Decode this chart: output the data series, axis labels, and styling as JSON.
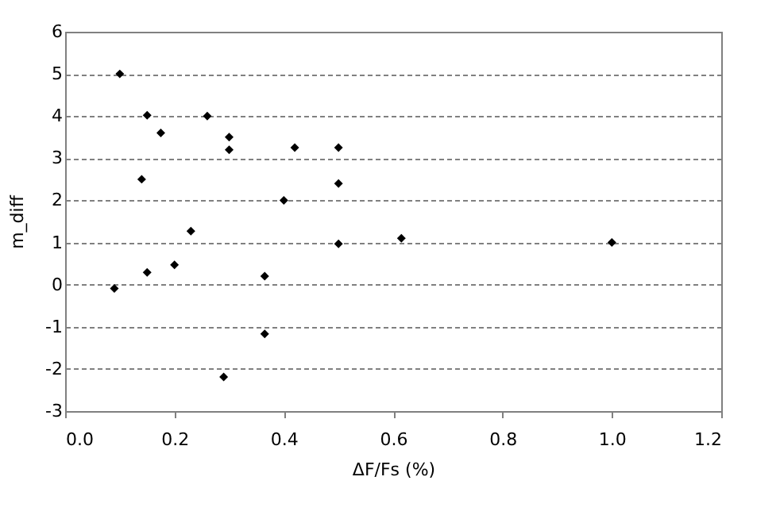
{
  "chart_data": {
    "type": "scatter",
    "xlabel": "ΔF/Fs (%)",
    "ylabel": "m_diff",
    "x": [
      0.1,
      0.15,
      0.175,
      0.14,
      0.26,
      0.3,
      0.3,
      0.42,
      0.5,
      0.5,
      0.4,
      0.23,
      0.5,
      0.09,
      0.15,
      0.2,
      0.365,
      0.365,
      0.29,
      0.615,
      1.0
    ],
    "values": [
      5.0,
      4.02,
      3.6,
      2.5,
      4.0,
      3.5,
      3.2,
      3.25,
      3.25,
      2.4,
      2.0,
      1.27,
      0.97,
      -0.09,
      0.29,
      0.47,
      0.2,
      -1.17,
      -2.19,
      1.1,
      1.0
    ],
    "color": "#000000",
    "marker": "diamond",
    "xlim": [
      0,
      1.2
    ],
    "xticks": [
      {
        "value": 0,
        "label": "0.0"
      },
      {
        "value": 0.2,
        "label": "0.2"
      },
      {
        "value": 0.4,
        "label": "0.4"
      },
      {
        "value": 0.6,
        "label": "0.6"
      },
      {
        "value": 0.8,
        "label": "0.8"
      },
      {
        "value": 1.0,
        "label": "1.0"
      },
      {
        "value": 1.2,
        "label": "1.2"
      }
    ],
    "ylim": [
      -3,
      6
    ],
    "yticks": [
      -3,
      -2,
      -1,
      0,
      1,
      2,
      3,
      4,
      5,
      6
    ],
    "grid": "y"
  }
}
